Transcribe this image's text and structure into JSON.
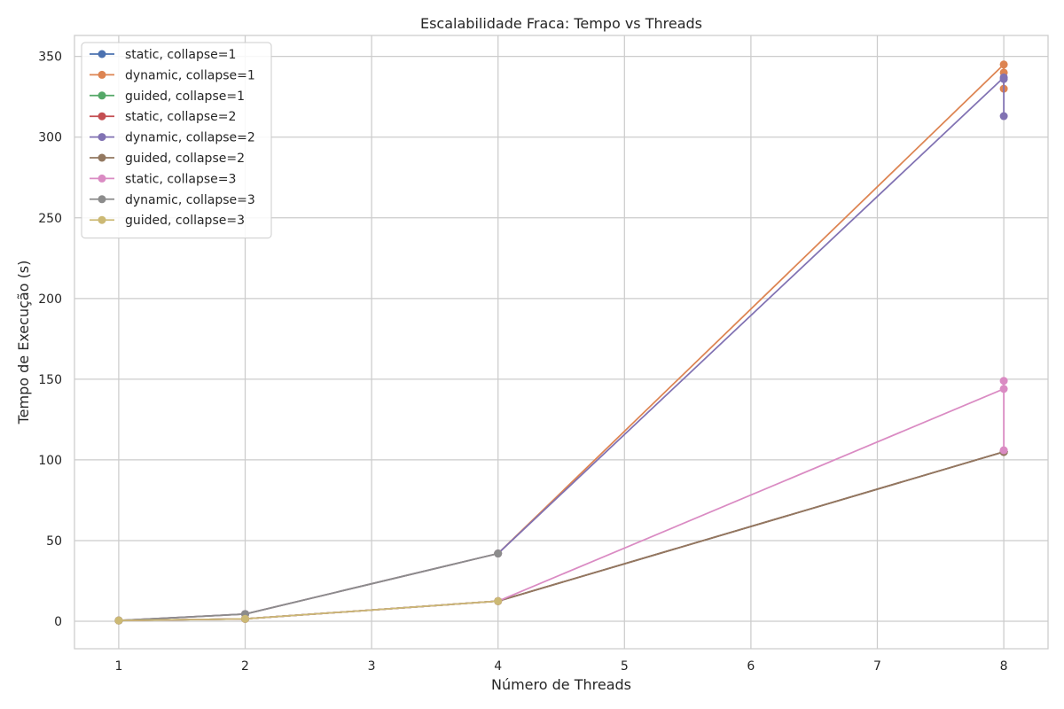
{
  "chart_data": {
    "type": "line",
    "title": "Escalabilidade Fraca: Tempo vs Threads",
    "xlabel": "Número de Threads",
    "ylabel": "Tempo de Execução (s)",
    "xlim": [
      0.65,
      8.35
    ],
    "ylim": [
      -17,
      363
    ],
    "xticks": [
      1,
      2,
      3,
      4,
      5,
      6,
      7,
      8
    ],
    "yticks": [
      0,
      50,
      100,
      150,
      200,
      250,
      300,
      350
    ],
    "grid": true,
    "legend_position": "top-left",
    "series": [
      {
        "name": "static, collapse=1",
        "color": "#4c72b0",
        "x": [
          1,
          2,
          4,
          8,
          8,
          8
        ],
        "y": [
          0.5,
          1.5,
          12.5,
          105,
          105,
          105
        ]
      },
      {
        "name": "dynamic, collapse=1",
        "color": "#dd8452",
        "x": [
          1,
          2,
          4,
          8,
          8,
          8
        ],
        "y": [
          0.5,
          4.5,
          42,
          345,
          340,
          330
        ]
      },
      {
        "name": "guided, collapse=1",
        "color": "#55a868",
        "x": [
          1,
          2,
          4,
          8,
          8,
          8
        ],
        "y": [
          0.5,
          1.5,
          12.5,
          105,
          105,
          105
        ]
      },
      {
        "name": "static, collapse=2",
        "color": "#c44e52",
        "x": [
          1,
          2,
          4,
          8,
          8,
          8
        ],
        "y": [
          0.5,
          1.5,
          12.5,
          105,
          105,
          105
        ]
      },
      {
        "name": "dynamic, collapse=2",
        "color": "#8172b3",
        "x": [
          1,
          2,
          4,
          8,
          8,
          8
        ],
        "y": [
          0.5,
          4.5,
          42,
          337,
          336,
          313
        ]
      },
      {
        "name": "guided, collapse=2",
        "color": "#937860",
        "x": [
          1,
          2,
          4,
          8,
          8,
          8
        ],
        "y": [
          0.5,
          1.5,
          12.5,
          105,
          105,
          105
        ]
      },
      {
        "name": "static, collapse=3",
        "color": "#da8bc3",
        "x": [
          1,
          2,
          4,
          8,
          8,
          8
        ],
        "y": [
          0.5,
          1.5,
          12.5,
          144,
          149,
          106
        ]
      },
      {
        "name": "dynamic, collapse=3",
        "color": "#8c8c8c",
        "x": [
          1,
          2,
          4
        ],
        "y": [
          0.5,
          4.5,
          42
        ]
      },
      {
        "name": "guided, collapse=3",
        "color": "#ccb974",
        "x": [
          1,
          2,
          4
        ],
        "y": [
          0.5,
          1.5,
          12.5
        ]
      }
    ]
  }
}
